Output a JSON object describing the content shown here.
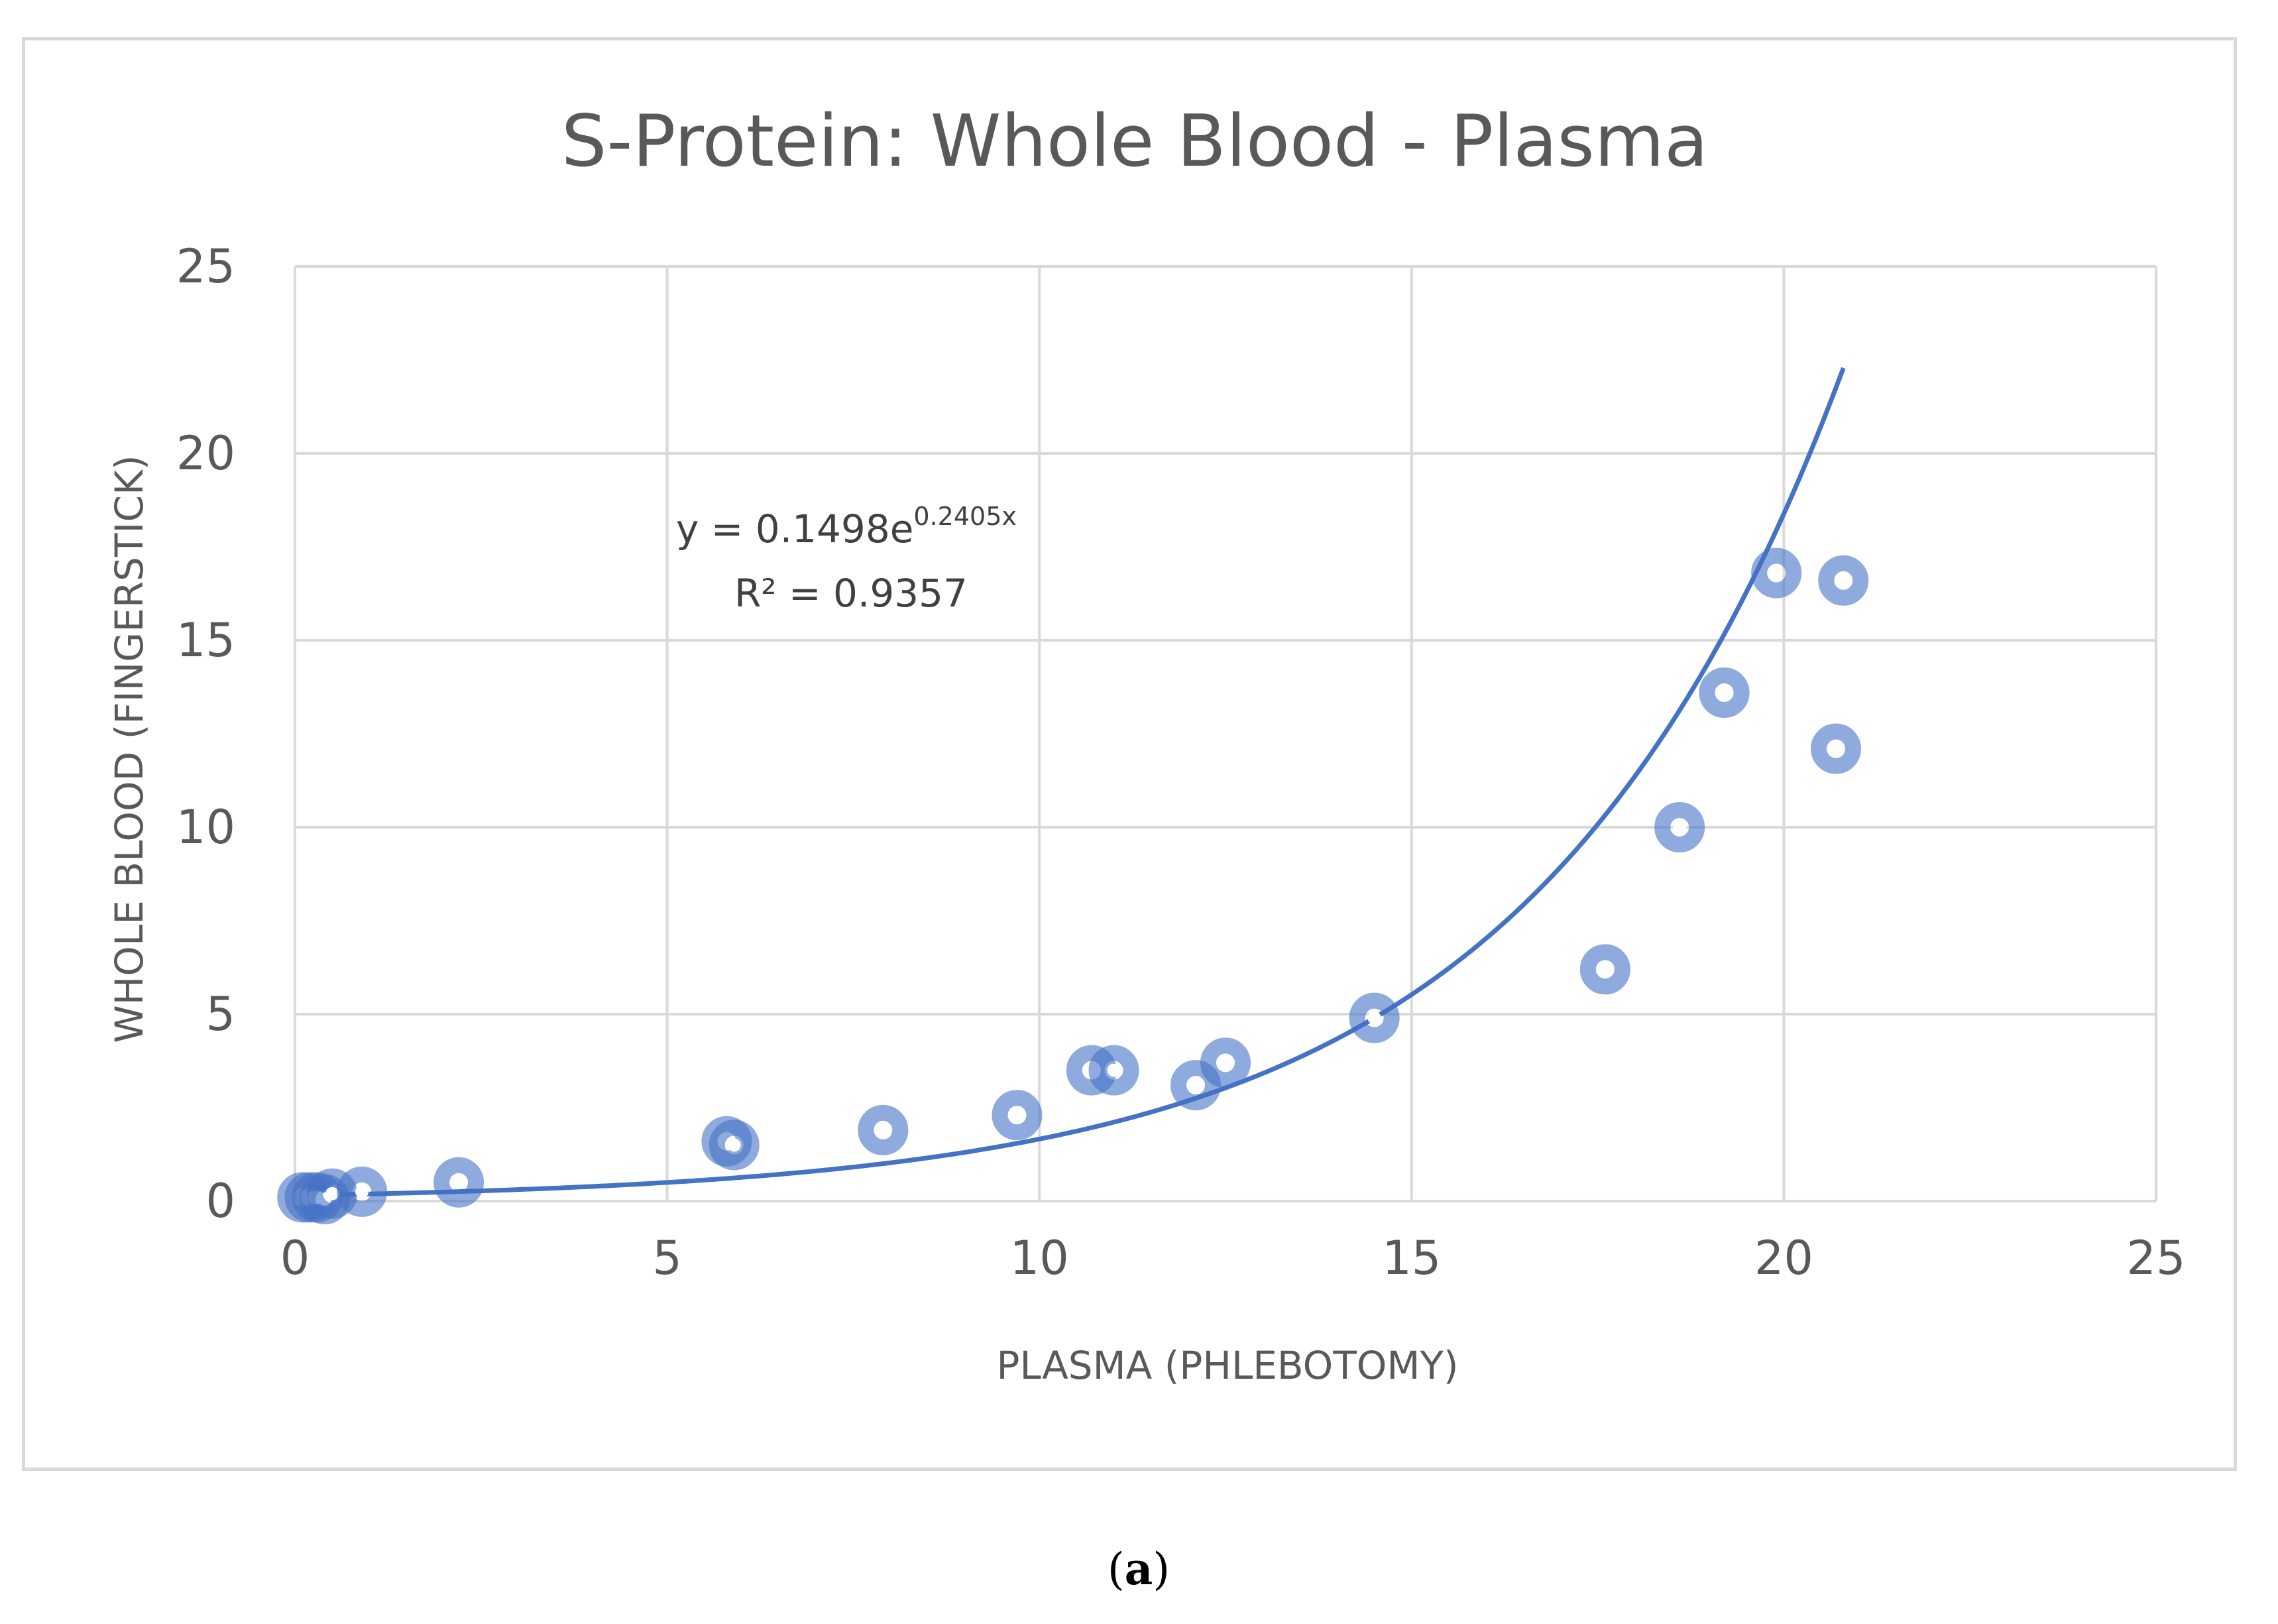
{
  "chart_data": {
    "type": "scatter",
    "title": "S-Protein: Whole Blood - Plasma",
    "xlabel": "PLASMA (PHLEBOTOMY)",
    "ylabel": "WHOLE BLOOD (FINGERSTICK)",
    "xlim": [
      0,
      25
    ],
    "ylim": [
      0,
      25
    ],
    "xticks": [
      "0",
      "5",
      "10",
      "15",
      "20",
      "25"
    ],
    "yticks": [
      "0",
      "5",
      "10",
      "15",
      "20",
      "25"
    ],
    "grid": true,
    "series": [
      {
        "name": "S-Protein",
        "color": "#4472c4",
        "points": [
          {
            "x": 0.1,
            "y": 0.1
          },
          {
            "x": 0.2,
            "y": 0.1
          },
          {
            "x": 0.3,
            "y": 0.1
          },
          {
            "x": 0.4,
            "y": 0.05
          },
          {
            "x": 0.5,
            "y": 0.2
          },
          {
            "x": 0.9,
            "y": 0.25
          },
          {
            "x": 2.2,
            "y": 0.5
          },
          {
            "x": 5.8,
            "y": 1.6
          },
          {
            "x": 5.9,
            "y": 1.5
          },
          {
            "x": 7.9,
            "y": 1.9
          },
          {
            "x": 9.7,
            "y": 2.3
          },
          {
            "x": 10.7,
            "y": 3.5
          },
          {
            "x": 11.0,
            "y": 3.5
          },
          {
            "x": 12.1,
            "y": 3.1
          },
          {
            "x": 12.5,
            "y": 3.7
          },
          {
            "x": 14.5,
            "y": 4.9
          },
          {
            "x": 17.6,
            "y": 6.2
          },
          {
            "x": 18.6,
            "y": 10.0
          },
          {
            "x": 19.2,
            "y": 13.6
          },
          {
            "x": 19.9,
            "y": 16.8
          },
          {
            "x": 20.7,
            "y": 12.1
          },
          {
            "x": 20.8,
            "y": 16.6
          }
        ]
      }
    ],
    "trendline": {
      "type": "exponential",
      "a": 0.1498,
      "b": 0.2405,
      "x_range": [
        0.1,
        20.8
      ],
      "color": "#4472c4",
      "equation_prefix": "y = 0.1498e",
      "equation_exponent": "0.2405x",
      "r_squared_label": "R² = 0.9357"
    }
  },
  "caption": {
    "open": "(",
    "letter": "a",
    "close": ")"
  }
}
